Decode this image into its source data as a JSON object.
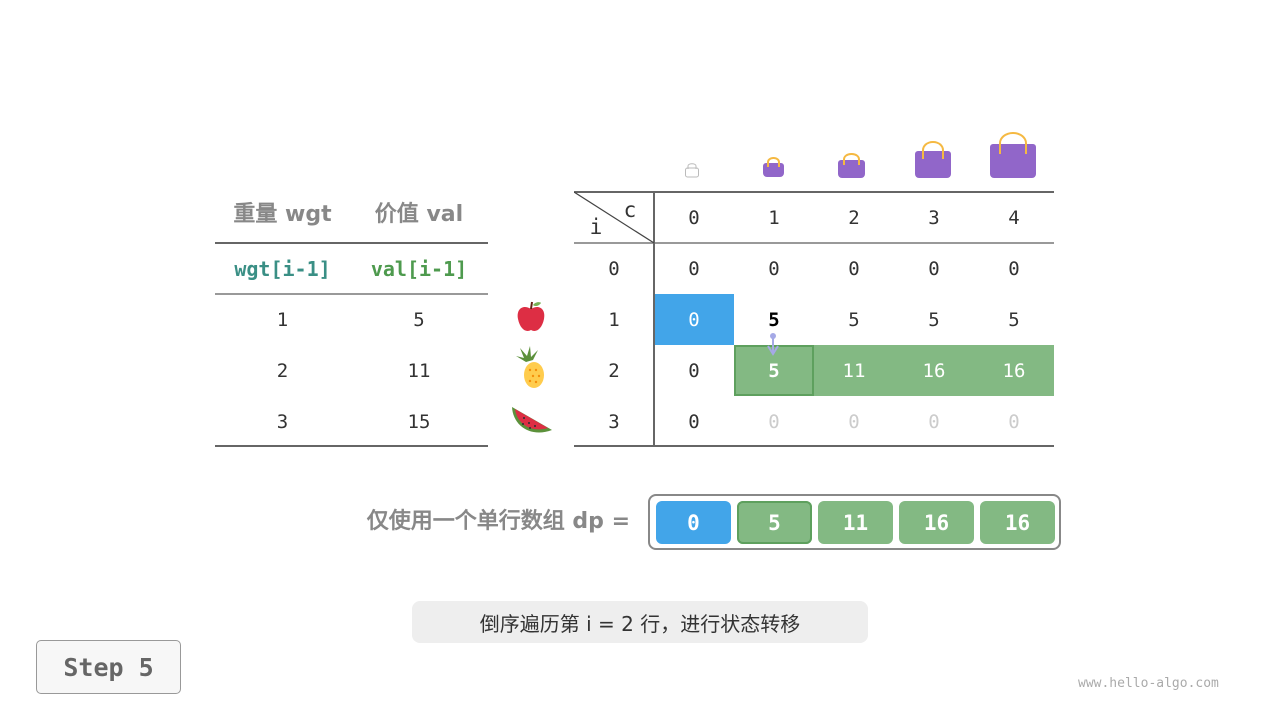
{
  "items_table": {
    "headers": [
      "重量 wgt",
      "价值 val"
    ],
    "subheaders": [
      "wgt[i-1]",
      "val[i-1]"
    ],
    "rows": [
      {
        "wgt": "1",
        "val": "5",
        "icon": "apple-icon"
      },
      {
        "wgt": "2",
        "val": "11",
        "icon": "pineapple-icon"
      },
      {
        "wgt": "3",
        "val": "15",
        "icon": "watermelon-icon"
      }
    ]
  },
  "dp_table": {
    "corner_c": "c",
    "corner_i": "i",
    "col_headers": [
      "0",
      "1",
      "2",
      "3",
      "4"
    ],
    "row_headers": [
      "0",
      "1",
      "2",
      "3"
    ],
    "rows": [
      [
        "0",
        "0",
        "0",
        "0",
        "0"
      ],
      [
        "0",
        "5",
        "5",
        "5",
        "5"
      ],
      [
        "0",
        "5",
        "11",
        "16",
        "16"
      ],
      [
        "0",
        "0",
        "0",
        "0",
        "0"
      ]
    ]
  },
  "dp_array": {
    "label": "仅使用一个单行数组 dp =",
    "values": [
      "0",
      "5",
      "11",
      "16",
      "16"
    ]
  },
  "caption": "倒序遍历第 i = 2 行，进行状态转移",
  "step_label": "Step 5",
  "watermark": "www.hello-algo.com",
  "colors": {
    "blue": "#42a5e9",
    "green": "#83b983",
    "green_border": "#5ea05e",
    "bag": "#9166c9",
    "teal": "#3a8f85",
    "val_green": "#4e9a4e"
  }
}
